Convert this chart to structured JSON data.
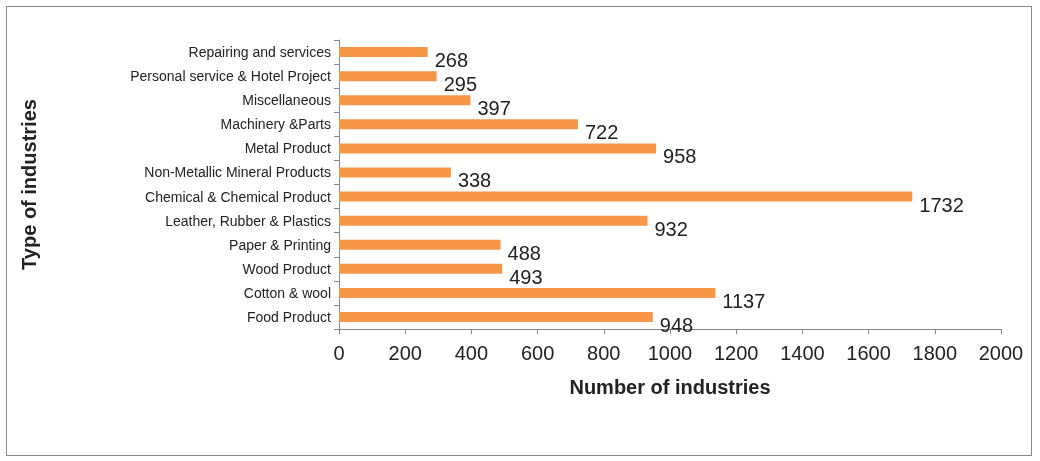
{
  "chart_data": {
    "type": "bar",
    "orientation": "horizontal",
    "xlabel": "Number of industries",
    "ylabel": "Type of industries",
    "categories": [
      "Repairing and services",
      "Personal service & Hotel Project",
      "Miscellaneous",
      "Machinery &Parts",
      "Metal Product",
      "Non-Metallic Mineral Products",
      "Chemical & Chemical Product",
      "Leather, Rubber & Plastics",
      "Paper & Printing",
      "Wood Product",
      "Cotton & wool",
      "Food Product"
    ],
    "values": [
      268,
      295,
      397,
      722,
      958,
      338,
      1732,
      932,
      488,
      493,
      1137,
      948
    ],
    "color": "#f79646",
    "xlim": [
      0,
      2000
    ],
    "xticks": [
      0,
      200,
      400,
      600,
      800,
      1000,
      1200,
      1400,
      1600,
      1800,
      2000
    ],
    "data_labels": true,
    "grid": false
  }
}
